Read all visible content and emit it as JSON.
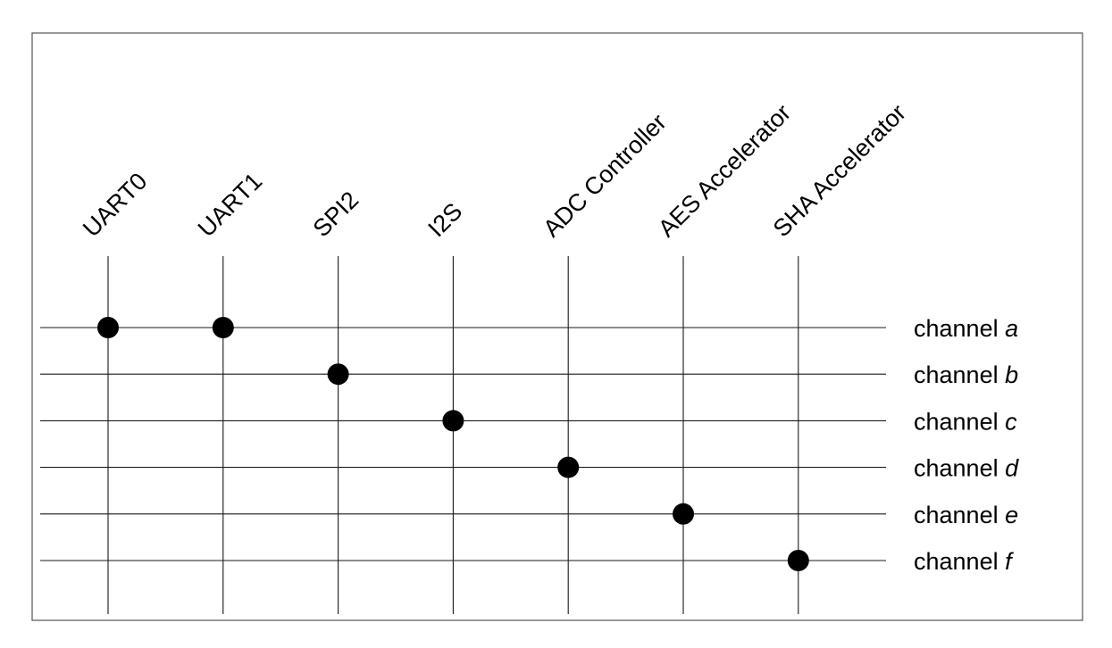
{
  "diagram": {
    "peripherals": [
      "UART0",
      "UART1",
      "SPI2",
      "I2S",
      "ADC Controller",
      "AES Accelerator",
      "SHA Accelerator"
    ],
    "channels": [
      {
        "prefix": "channel",
        "letter": "a"
      },
      {
        "prefix": "channel",
        "letter": "b"
      },
      {
        "prefix": "channel",
        "letter": "c"
      },
      {
        "prefix": "channel",
        "letter": "d"
      },
      {
        "prefix": "channel",
        "letter": "e"
      },
      {
        "prefix": "channel",
        "letter": "f"
      }
    ],
    "connections": [
      {
        "peripheral": "UART0",
        "channel": "a"
      },
      {
        "peripheral": "UART1",
        "channel": "a"
      },
      {
        "peripheral": "SPI2",
        "channel": "b"
      },
      {
        "peripheral": "I2S",
        "channel": "c"
      },
      {
        "peripheral": "ADC Controller",
        "channel": "d"
      },
      {
        "peripheral": "AES Accelerator",
        "channel": "e"
      },
      {
        "peripheral": "SHA Accelerator",
        "channel": "f"
      }
    ]
  }
}
